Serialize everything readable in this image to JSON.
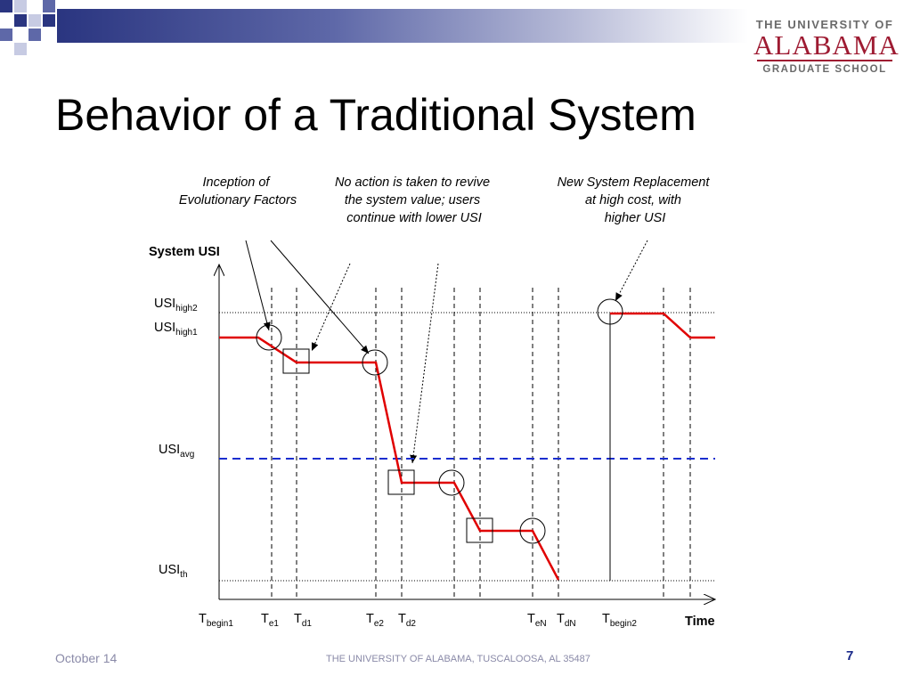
{
  "slide": {
    "title": "Behavior of a Traditional System",
    "footer_date": "October 14",
    "footer_center": "THE UNIVERSITY OF ALABAMA, TUSCALOOSA, AL 35487",
    "page_number": "7"
  },
  "logo": {
    "line1": "THE UNIVERSITY OF",
    "line2": "ALABAMA",
    "line3": "GRADUATE SCHOOL",
    "color": "#9e1b32"
  },
  "annotations": {
    "inception": [
      "Inception of",
      "Evolutionary Factors"
    ],
    "no_action": [
      "No action is taken to revive",
      "the system value; users",
      "continue with lower USI"
    ],
    "replacement": [
      "New System Replacement",
      "at high cost, with",
      "higher USI"
    ]
  },
  "axes": {
    "y_title": "System USI",
    "x_title": "Time"
  },
  "levels": {
    "high2": {
      "base": "USI",
      "sub": "high2"
    },
    "high1": {
      "base": "USI",
      "sub": "high1"
    },
    "avg": {
      "base": "USI",
      "sub": "avg",
      "color": "#1a2ecf"
    },
    "th": {
      "base": "USI",
      "sub": "th"
    }
  },
  "time_labels": [
    {
      "base": "T",
      "sub": "begin1"
    },
    {
      "base": "T",
      "sub": "e1"
    },
    {
      "base": "T",
      "sub": "d1"
    },
    {
      "base": "T",
      "sub": "e2"
    },
    {
      "base": "T",
      "sub": "d2"
    },
    {
      "base": "T",
      "sub": "eN"
    },
    {
      "base": "T",
      "sub": "dN"
    },
    {
      "base": "T",
      "sub": "begin2"
    }
  ],
  "colors": {
    "curve": "#e00000",
    "avg_line": "#1a2ecf",
    "header_gradient_start": "#2a3580"
  }
}
